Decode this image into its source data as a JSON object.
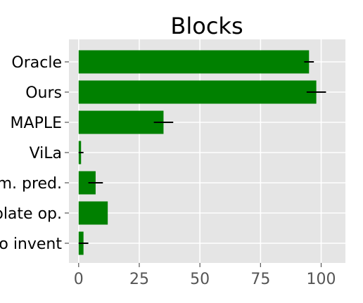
{
  "chart_data": {
    "type": "bar",
    "orientation": "horizontal",
    "title": "Blocks",
    "xlabel": "",
    "ylabel": "",
    "categories": [
      "Oracle",
      "Ours",
      "MAPLE",
      "ViLa",
      "m. pred.",
      "plate op.",
      "o invent"
    ],
    "values": [
      95,
      98,
      35,
      1,
      7,
      12,
      2
    ],
    "errors": [
      2,
      4,
      4,
      1,
      3,
      0,
      2
    ],
    "xlim": [
      -4,
      110
    ],
    "xticks": [
      "0",
      "25",
      "50",
      "75",
      "100"
    ],
    "xtick_values": [
      0,
      25,
      50,
      75,
      100
    ],
    "grid": true,
    "bar_color": "#008000",
    "error_color": "#000000",
    "plot_background": "#e5e5e5",
    "grid_color": "#ffffff",
    "tick_label_color": "#555555",
    "category_label_color": "#000000"
  }
}
